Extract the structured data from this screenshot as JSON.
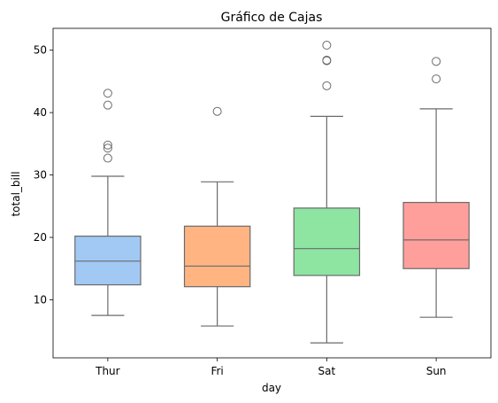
{
  "chart_data": {
    "type": "box",
    "title": "Gráfico de Cajas",
    "xlabel": "day",
    "ylabel": "total_bill",
    "categories": [
      "Thur",
      "Fri",
      "Sat",
      "Sun"
    ],
    "ylim": [
      0.7,
      53.5
    ],
    "yticks": [
      10,
      20,
      30,
      40,
      50
    ],
    "grid": false,
    "boxes": [
      {
        "category": "Thur",
        "whisker_low": 7.5,
        "q1": 12.4,
        "median": 16.2,
        "q3": 20.2,
        "whisker_high": 29.8,
        "outliers": [
          32.7,
          34.3,
          34.8,
          41.2,
          43.1
        ],
        "color": "#a1c9f4"
      },
      {
        "category": "Fri",
        "whisker_low": 5.8,
        "q1": 12.1,
        "median": 15.4,
        "q3": 21.8,
        "whisker_high": 28.9,
        "outliers": [
          40.2
        ],
        "color": "#ffb482"
      },
      {
        "category": "Sat",
        "whisker_low": 3.1,
        "q1": 13.9,
        "median": 18.2,
        "q3": 24.7,
        "whisker_high": 39.4,
        "outliers": [
          44.3,
          48.3,
          48.4,
          50.8
        ],
        "color": "#8de5a1"
      },
      {
        "category": "Sun",
        "whisker_low": 7.2,
        "q1": 15.0,
        "median": 19.6,
        "q3": 25.6,
        "whisker_high": 40.6,
        "outliers": [
          45.4,
          48.2
        ],
        "color": "#ff9f9b"
      }
    ],
    "line_color": "#6b6b6b"
  }
}
